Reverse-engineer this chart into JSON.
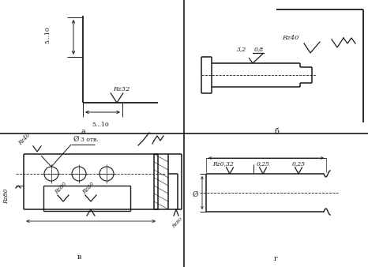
{
  "bg_color": "#ffffff",
  "lc": "#1a1a1a",
  "label_a": "а",
  "label_b": "б",
  "label_v": "в",
  "label_g": "г"
}
